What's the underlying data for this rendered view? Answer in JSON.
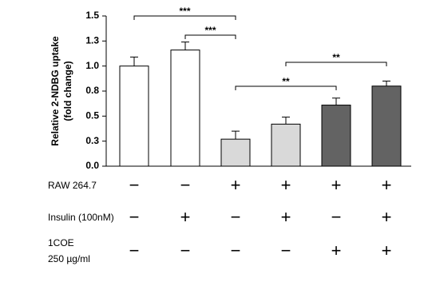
{
  "chart_data": {
    "type": "bar",
    "ylabel": [
      "Relative 2-NDBG uptake",
      "(fold change)"
    ],
    "categories": [
      null,
      null,
      null,
      null,
      null,
      null
    ],
    "values": [
      1.0,
      1.16,
      0.27,
      0.42,
      0.61,
      0.8
    ],
    "errors": [
      0.09,
      0.08,
      0.08,
      0.07,
      0.07,
      0.05
    ],
    "colors": [
      "#ffffff",
      "#ffffff",
      "#d9d9d9",
      "#d9d9d9",
      "#636363",
      "#636363"
    ],
    "ylim": [
      0,
      1.5
    ],
    "yticks": [
      {
        "value": 0,
        "label": "0.0"
      },
      {
        "value": 0.25,
        "label": "0.3"
      },
      0.5,
      {
        "value": 0.75,
        "label": "0.8"
      },
      {
        "value": 1,
        "label": "1.0"
      },
      {
        "value": 1.25,
        "label": "1.3"
      },
      1.5
    ],
    "annotations": [
      "***",
      "***",
      "**",
      "**"
    ]
  },
  "table": {
    "rows": [
      {
        "label": [
          "RAW 264.7"
        ],
        "cells": [
          "−",
          "−",
          "+",
          "+",
          "+",
          "+"
        ]
      },
      {
        "label": [
          "Insulin (100nM)"
        ],
        "cells": [
          "−",
          "+",
          "−",
          "+",
          "−",
          "+"
        ]
      },
      {
        "label": [
          "1COE",
          "250 µg/ml"
        ],
        "cells": [
          "−",
          "−",
          "−",
          "−",
          "+",
          "+"
        ]
      }
    ]
  }
}
